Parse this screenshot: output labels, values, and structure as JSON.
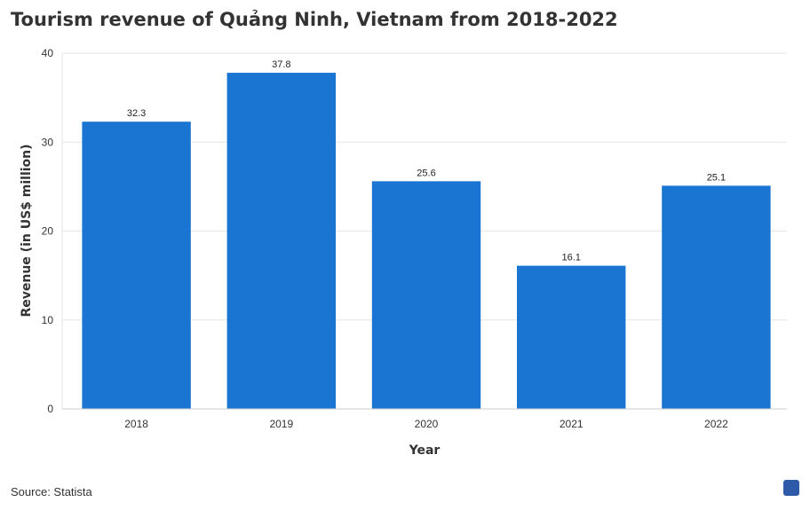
{
  "page": {
    "title": "Tourism revenue of Quảng Ninh, Vietnam from 2018-2022",
    "source": "Source: Statista",
    "logo_icon": "statista-logo-icon"
  },
  "chart_data": {
    "type": "bar",
    "title": "Tourism revenue of Quảng Ninh, Vietnam from 2018-2022",
    "categories": [
      "2018",
      "2019",
      "2020",
      "2021",
      "2022"
    ],
    "values": [
      32.3,
      37.8,
      25.6,
      16.1,
      25.1
    ],
    "value_labels": [
      "32.3",
      "37.8",
      "25.6",
      "16.1",
      "25.1"
    ],
    "xlabel": "Year",
    "ylabel": "Revenue (in US$ million)",
    "ylim": [
      0,
      40
    ],
    "yticks": [
      "0",
      "10",
      "20",
      "30",
      "40"
    ],
    "grid": true,
    "legend": "none",
    "bar_color": "#1a75d2"
  }
}
